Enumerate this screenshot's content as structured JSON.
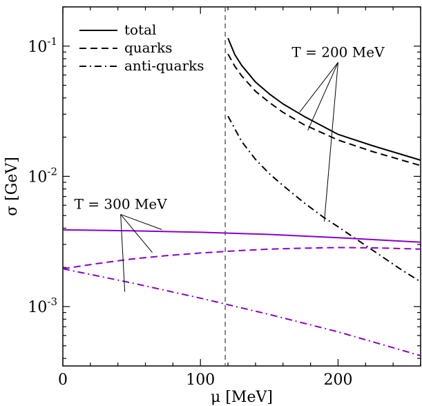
{
  "chart_data": {
    "type": "line",
    "xlabel": "μ [MeV]",
    "ylabel": "σ [GeV]",
    "xlim": [
      0,
      260
    ],
    "ylim": [
      0.00035,
      0.2
    ],
    "yscale": "log",
    "grid": false,
    "x_ticks": [
      0,
      100,
      200
    ],
    "y_ticks": [
      {
        "value": 0.1,
        "base": "10",
        "exp": "-1"
      },
      {
        "value": 0.01,
        "base": "10",
        "exp": "-2"
      },
      {
        "value": 0.001,
        "base": "10",
        "exp": "-3"
      }
    ],
    "legend": {
      "position": "top-left",
      "entries": [
        {
          "label": "total",
          "dash": "solid"
        },
        {
          "label": "quarks",
          "dash": "dashed"
        },
        {
          "label": "anti-quarks",
          "dash": "dashdot"
        }
      ]
    },
    "vline": {
      "x": 118,
      "style": "dashed",
      "color": "#555555"
    },
    "series": [
      {
        "name": "total",
        "group": "T = 200 MeV",
        "color": "#000000",
        "dash": "solid",
        "x": [
          120,
          125,
          130,
          140,
          150,
          160,
          175,
          200,
          225,
          260
        ],
        "y": [
          0.115,
          0.086,
          0.071,
          0.053,
          0.043,
          0.036,
          0.029,
          0.021,
          0.0172,
          0.0133
        ]
      },
      {
        "name": "quarks",
        "group": "T = 200 MeV",
        "color": "#000000",
        "dash": "dashed",
        "x": [
          120,
          125,
          130,
          140,
          150,
          160,
          175,
          200,
          225,
          260
        ],
        "y": [
          0.087,
          0.07,
          0.059,
          0.045,
          0.037,
          0.031,
          0.025,
          0.019,
          0.0155,
          0.0121
        ]
      },
      {
        "name": "anti-quarks",
        "group": "T = 200 MeV",
        "color": "#000000",
        "dash": "dashdot",
        "x": [
          120,
          130,
          140,
          150,
          160,
          175,
          190,
          200,
          215,
          230,
          245,
          260
        ],
        "y": [
          0.029,
          0.0185,
          0.0135,
          0.0105,
          0.0085,
          0.0063,
          0.0048,
          0.0041,
          0.0032,
          0.0025,
          0.00195,
          0.00155
        ]
      },
      {
        "name": "total",
        "group": "T = 300 MeV",
        "color": "#8800cc",
        "dash": "solid",
        "x": [
          0,
          50,
          100,
          150,
          200,
          260
        ],
        "y": [
          0.00388,
          0.00382,
          0.00372,
          0.00358,
          0.00338,
          0.00312
        ]
      },
      {
        "name": "quarks",
        "group": "T = 300 MeV",
        "color": "#8800cc",
        "dash": "dashed",
        "x": [
          0,
          25,
          50,
          75,
          100,
          125,
          150,
          175,
          200,
          230,
          260
        ],
        "y": [
          0.00195,
          0.00214,
          0.00232,
          0.00246,
          0.00258,
          0.00268,
          0.00276,
          0.00281,
          0.00284,
          0.00282,
          0.00276
        ]
      },
      {
        "name": "anti-quarks",
        "group": "T = 300 MeV",
        "color": "#8800cc",
        "dash": "dashdot",
        "x": [
          0,
          50,
          100,
          150,
          200,
          260
        ],
        "y": [
          0.00195,
          0.00152,
          0.00116,
          0.00087,
          0.00064,
          0.00042
        ]
      }
    ],
    "annotations": [
      {
        "text": "T = 200 MeV",
        "group": "T = 200 MeV",
        "anchor": {
          "x": 200,
          "y": 0.075
        },
        "targets": [
          {
            "x": 172,
            "y": 0.031
          },
          {
            "x": 178,
            "y": 0.0225
          },
          {
            "x": 190,
            "y": 0.0045
          }
        ]
      },
      {
        "text": "T = 300 MeV",
        "group": "T = 300 MeV",
        "anchor": {
          "x": 42,
          "y": 0.0051
        },
        "targets": [
          {
            "x": 72,
            "y": 0.0039
          },
          {
            "x": 65,
            "y": 0.0026
          },
          {
            "x": 45,
            "y": 0.0013
          }
        ]
      }
    ]
  }
}
